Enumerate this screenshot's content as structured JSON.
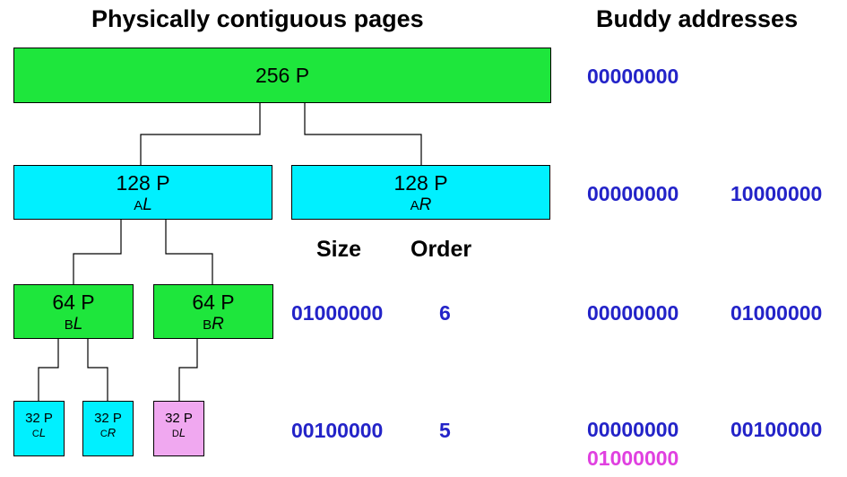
{
  "headings": {
    "left": "Physically contiguous pages",
    "right": "Buddy addresses"
  },
  "blocks": {
    "root": {
      "size": "256 P",
      "color": "#1ee63c"
    },
    "a_left": {
      "size": "128 P",
      "sub": "A",
      "subscript": "L",
      "color": "#00f0ff"
    },
    "a_right": {
      "size": "128 P",
      "sub": "A",
      "subscript": "R",
      "color": "#00f0ff"
    },
    "b_left": {
      "size": "64 P",
      "sub": "B",
      "subscript": "L",
      "color": "#1ee63c"
    },
    "b_right": {
      "size": "64 P",
      "sub": "B",
      "subscript": "R",
      "color": "#1ee63c"
    },
    "c_left": {
      "size": "32 P",
      "sub": "C",
      "subscript": "L",
      "color": "#00f0ff"
    },
    "c_right": {
      "size": "32 P",
      "sub": "C",
      "subscript": "R",
      "color": "#00f0ff"
    },
    "d_left": {
      "size": "32 P",
      "sub": "D",
      "subscript": "L",
      "color": "#f0a8f0"
    }
  },
  "table": {
    "size_header": "Size",
    "order_header": "Order",
    "rows": [
      {
        "size": "01000000",
        "order": "6"
      },
      {
        "size": "00100000",
        "order": "5"
      }
    ]
  },
  "buddy_addresses": {
    "row0": [
      "00000000"
    ],
    "row1": [
      "00000000",
      "10000000"
    ],
    "row2": [
      "00000000",
      "01000000"
    ],
    "row3": [
      "00000000",
      "00100000"
    ],
    "row3_extra": "01000000"
  },
  "colors": {
    "address_text": "#2323c8",
    "highlight_text": "#e040e0"
  }
}
